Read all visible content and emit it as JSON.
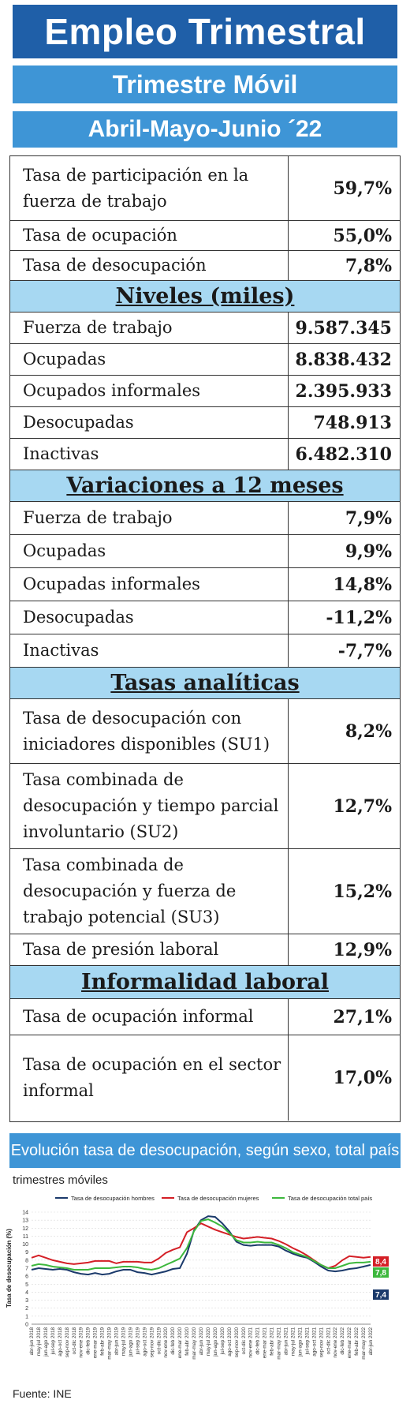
{
  "header": {
    "title": "Empleo Trimestral",
    "subtitle": "Trimestre Móvil",
    "period": "Abril-Mayo-Junio ´22"
  },
  "tasas": [
    {
      "label": "Tasa de participación en la fuerza de trabajo",
      "value": "59,7%"
    },
    {
      "label": "Tasa de ocupación",
      "value": "55,0%"
    },
    {
      "label": "Tasa de desocupación",
      "value": "7,8%"
    }
  ],
  "niveles": {
    "title": "Niveles (miles)",
    "rows": [
      {
        "label": "Fuerza de trabajo",
        "value": "9.587.345"
      },
      {
        "label": "Ocupadas",
        "value": "8.838.432"
      },
      {
        "label": "Ocupados informales",
        "value": "2.395.933"
      },
      {
        "label": "Desocupadas",
        "value": "748.913"
      },
      {
        "label": "Inactivas",
        "value": "6.482.310"
      }
    ]
  },
  "variaciones": {
    "title": "Variaciones a 12 meses",
    "rows": [
      {
        "label": "Fuerza de trabajo",
        "value": "7,9%"
      },
      {
        "label": "Ocupadas",
        "value": "9,9%"
      },
      {
        "label": "Ocupadas informales",
        "value": "14,8%"
      },
      {
        "label": "Desocupadas",
        "value": "-11,2%"
      },
      {
        "label": "Inactivas",
        "value": "-7,7%"
      }
    ]
  },
  "analiticas": {
    "title": "Tasas analíticas",
    "rows": [
      {
        "label": "Tasa de desocupación con iniciadores disponibles (SU1)",
        "value": "8,2%"
      },
      {
        "label": "Tasa combinada de desocupación y tiempo parcial involuntario (SU2)",
        "value": "12,7%"
      },
      {
        "label": "Tasa combinada de desocupación y fuerza de trabajo potencial (SU3)",
        "value": "15,2%"
      },
      {
        "label": "Tasa de presión laboral",
        "value": "12,9%"
      }
    ]
  },
  "informalidad": {
    "title": "Informalidad laboral",
    "rows": [
      {
        "label": "Tasa de ocupación informal",
        "value": "27,1%"
      },
      {
        "label": "Tasa de ocupación en el sector informal",
        "value": "17,0%"
      }
    ]
  },
  "chart_banner": "Evolución tasa de desocupación, según sexo, total país",
  "chart_caption": "trimestres móviles",
  "source": "Fuente: INE",
  "chart_data": {
    "type": "line",
    "ylabel": "Tasa de desocupación (%)",
    "ylim": [
      0,
      14
    ],
    "yticks": [
      0,
      1,
      2,
      3,
      4,
      5,
      6,
      7,
      8,
      9,
      10,
      11,
      12,
      13,
      14
    ],
    "grid": true,
    "legend_position": "top",
    "x": [
      "abr-jun 2018",
      "may-jul 2018",
      "jun-ago 2018",
      "jul-sep 2018",
      "ago-oct 2018",
      "sep-nov 2018",
      "oct-dic 2018",
      "nov-ene 2019",
      "dic-feb 2019",
      "ene-mar 2019",
      "feb-abr 2019",
      "mar-may 2019",
      "abr-jun 2019",
      "may-jul 2019",
      "jun-ago 2019",
      "jul-sep 2019",
      "ago-oct 2019",
      "sep-nov 2019",
      "oct-dic 2019",
      "nov-ene 2020",
      "dic-feb 2020",
      "ene-mar 2020",
      "feb-abr 2020",
      "mar-may 2020",
      "abr-jun 2020",
      "may-jul 2020",
      "jun-ago 2020",
      "jul-sep 2020",
      "ago-oct 2020",
      "sep-nov 2020",
      "oct-dic 2020",
      "nov-ene 2021",
      "dic-feb 2021",
      "ene-mar 2021",
      "feb-abr 2021",
      "mar-may 2021",
      "abr-jun 2021",
      "may-jul 2021",
      "jun-ago 2021",
      "jul-sep 2021",
      "ago-oct 2021",
      "sep-nov 2021",
      "oct-dic 2021",
      "nov-ene 2022",
      "dic-feb 2022",
      "ene-mar 2022",
      "feb-abr 2022",
      "mar-may 2022",
      "abr-jun 2022"
    ],
    "series": [
      {
        "name": "Tasa de desocupación hombres",
        "color": "#1b3a6b",
        "values": [
          6.8,
          7.0,
          6.9,
          6.8,
          6.9,
          6.8,
          6.5,
          6.3,
          6.2,
          6.4,
          6.2,
          6.3,
          6.6,
          6.8,
          6.8,
          6.5,
          6.4,
          6.2,
          6.4,
          6.6,
          6.9,
          7.0,
          8.8,
          11.7,
          13.0,
          13.5,
          13.4,
          12.6,
          11.6,
          10.3,
          9.9,
          9.8,
          9.9,
          9.9,
          9.9,
          9.7,
          9.2,
          8.8,
          8.5,
          8.3,
          7.8,
          7.2,
          6.7,
          6.6,
          6.7,
          6.9,
          7.0,
          7.2,
          7.4
        ],
        "end_label": "7,4"
      },
      {
        "name": "Tasa de desocupación mujeres",
        "color": "#d41f26",
        "values": [
          8.3,
          8.6,
          8.3,
          8.0,
          7.8,
          7.6,
          7.5,
          7.6,
          7.7,
          7.9,
          7.9,
          7.9,
          7.6,
          7.8,
          7.8,
          7.8,
          7.7,
          7.7,
          8.2,
          8.9,
          9.3,
          9.6,
          11.5,
          12.0,
          12.6,
          12.2,
          11.8,
          11.5,
          11.2,
          10.9,
          10.7,
          10.8,
          10.9,
          10.8,
          10.7,
          10.4,
          10.0,
          9.5,
          9.1,
          8.6,
          8.0,
          7.4,
          7.0,
          7.3,
          8.0,
          8.5,
          8.4,
          8.3,
          8.4
        ],
        "end_label": "8,4"
      },
      {
        "name": "Tasa de desocupación total país",
        "color": "#3db83d",
        "values": [
          7.3,
          7.5,
          7.4,
          7.2,
          7.1,
          7.0,
          6.8,
          6.8,
          6.8,
          7.0,
          7.0,
          7.0,
          7.1,
          7.2,
          7.2,
          7.1,
          6.9,
          6.8,
          7.0,
          7.4,
          7.8,
          8.2,
          9.5,
          11.6,
          12.9,
          13.1,
          12.7,
          12.2,
          11.4,
          10.5,
          10.2,
          10.2,
          10.3,
          10.2,
          10.2,
          9.9,
          9.5,
          9.0,
          8.7,
          8.4,
          7.9,
          7.4,
          7.0,
          7.0,
          7.3,
          7.6,
          7.7,
          7.7,
          7.8
        ],
        "end_label": "7,8"
      }
    ]
  }
}
